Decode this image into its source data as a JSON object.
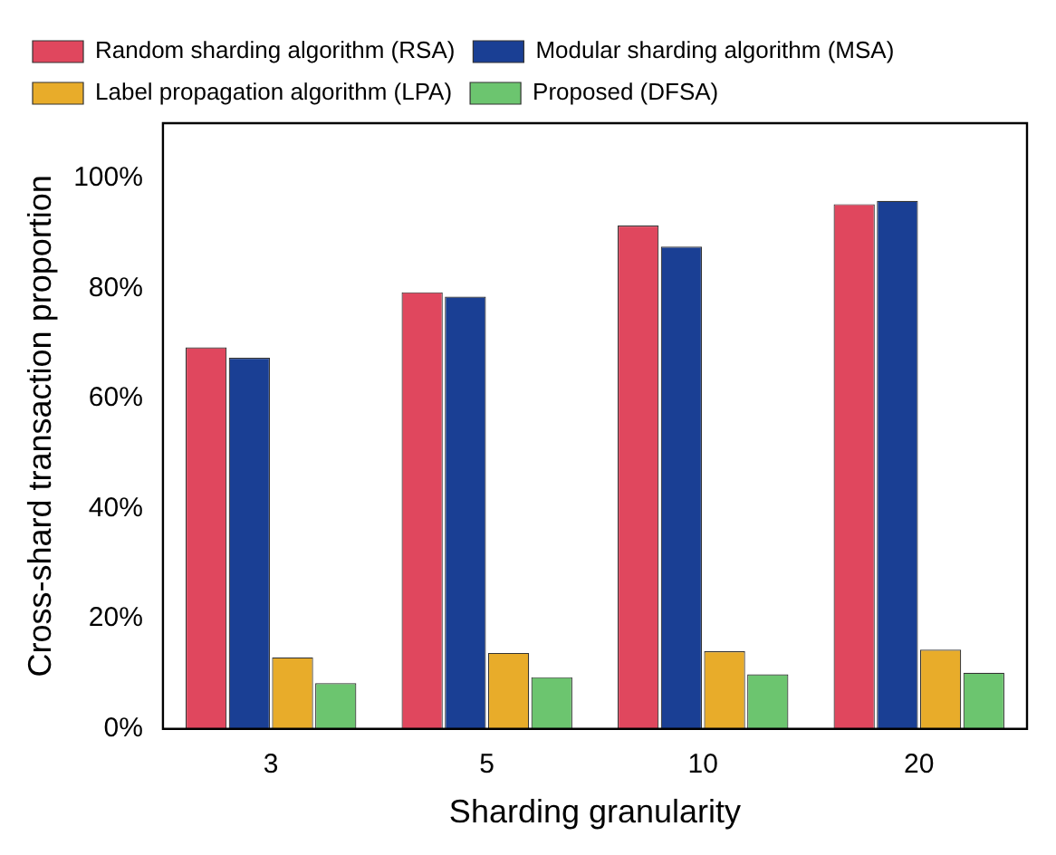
{
  "chart_data": {
    "type": "bar",
    "xlabel": "Sharding granularity",
    "ylabel": "Cross-shard transaction proportion",
    "categories": [
      "3",
      "5",
      "10",
      "20"
    ],
    "series": [
      {
        "name": "Random sharding algorithm (RSA)",
        "color": "#e0475e",
        "values": [
          69.3,
          79.3,
          91.4,
          95.3
        ]
      },
      {
        "name": "Modular sharding algorithm (MSA)",
        "color": "#1a3f94",
        "values": [
          67.4,
          78.5,
          87.6,
          95.9
        ]
      },
      {
        "name": "Label propagation algorithm (LPA)",
        "color": "#e8ac2a",
        "values": [
          13,
          13.8,
          14.1,
          14.4
        ]
      },
      {
        "name": "Proposed (DFSA)",
        "color": "#6cc56f",
        "values": [
          8.3,
          9.4,
          9.9,
          10.2
        ]
      }
    ],
    "ylim": [
      0,
      110
    ],
    "yticks": [
      {
        "value": 0,
        "label": "0%"
      },
      {
        "value": 20,
        "label": "20%"
      },
      {
        "value": 40,
        "label": "40%"
      },
      {
        "value": 60,
        "label": "60%"
      },
      {
        "value": 80,
        "label": "80%"
      },
      {
        "value": 100,
        "label": "100%"
      }
    ],
    "grid": false,
    "legend": "top"
  }
}
